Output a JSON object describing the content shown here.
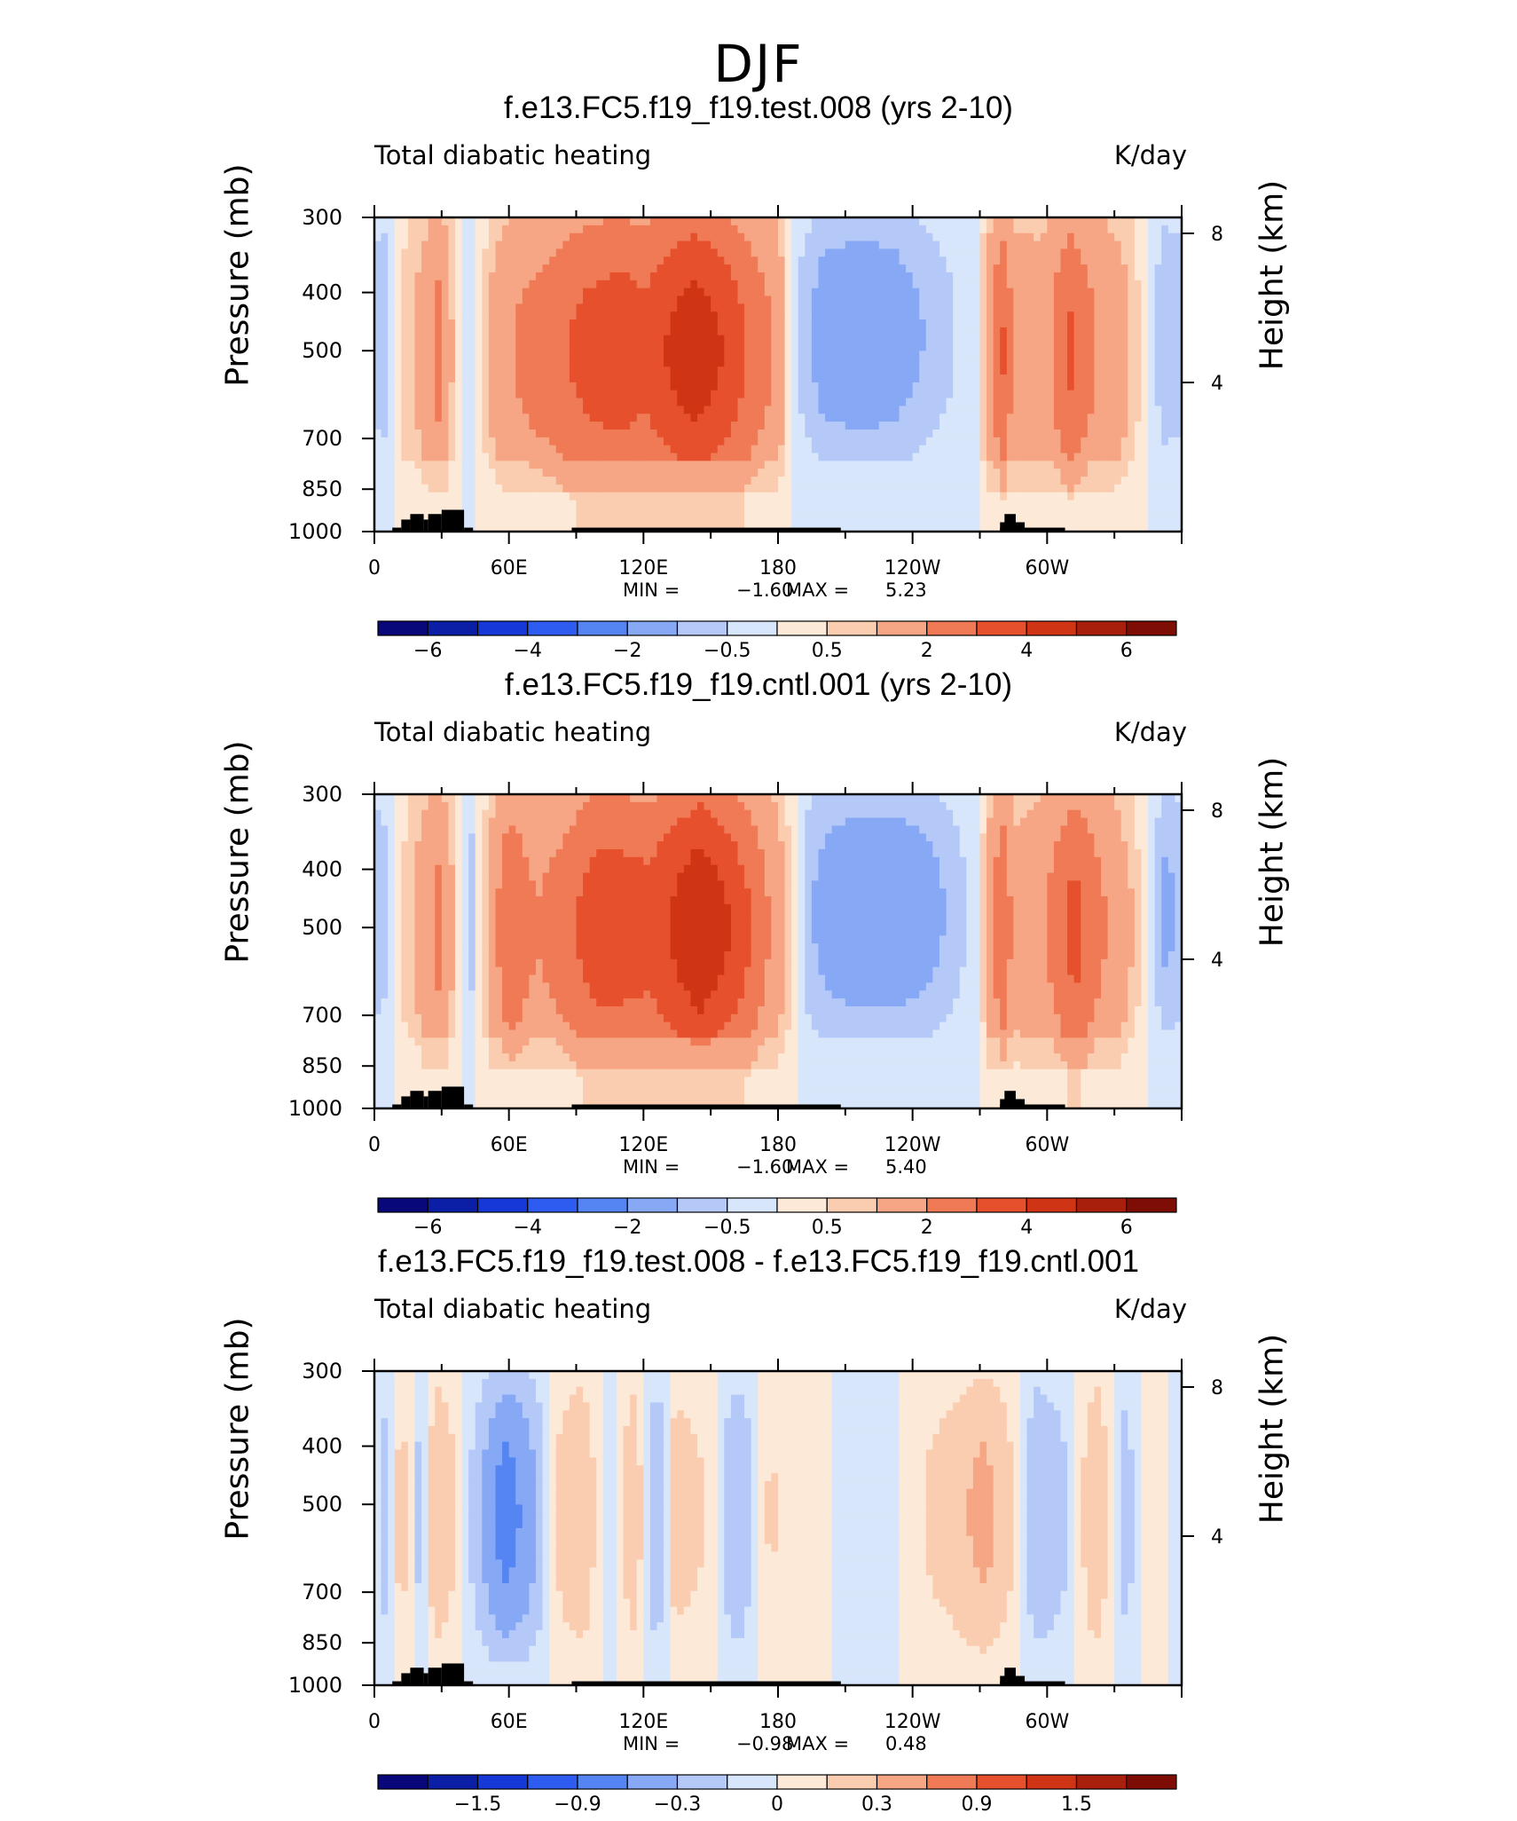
{
  "figure": {
    "season": "DJF"
  },
  "colors": {
    "scale": [
      "#08087a",
      "#0b1fa6",
      "#1538d6",
      "#2e5cf0",
      "#5585f2",
      "#86a8f5",
      "#b4c9f8",
      "#d8e6fb",
      "#fde9d8",
      "#fbcdb0",
      "#f6a684",
      "#f07a55",
      "#e7502c",
      "#cf3414",
      "#a8200c",
      "#7e0d05"
    ],
    "terrain": "#000000"
  },
  "chart_data": [
    {
      "type": "heatmap",
      "title": "f.e13.FC5.f19_f19.test.008 (yrs 2-10)",
      "variable": "Total diabatic heating",
      "units": "K/day",
      "ylabel": "Pressure (mb)",
      "ylabel_right": "Height (km)",
      "x_ticks": [
        "0",
        "60E",
        "120E",
        "180",
        "120W",
        "60W"
      ],
      "x_range": [
        0,
        360
      ],
      "y_ticks": [
        "300",
        "400",
        "500",
        "700",
        "850",
        "1000"
      ],
      "y_range": [
        1000,
        300
      ],
      "y_right_ticks": [
        "8",
        "4"
      ],
      "min_label": "MIN =",
      "min": "−1.60",
      "max_label": "MAX =",
      "max": "5.23",
      "colorbar_labels": [
        "−6",
        "−4",
        "−2",
        "−0.5",
        "0.5",
        "2",
        "4",
        "6"
      ],
      "colorbar_levels": [
        -7,
        -6,
        -5,
        -4,
        -3,
        -2,
        -1,
        -0.5,
        0,
        0.5,
        1,
        2,
        3,
        4,
        5,
        6,
        7
      ],
      "field": [
        {
          "x": 10,
          "features": [
            [
              2,
              0.1,
              0.05,
              0.3
            ]
          ]
        },
        {
          "x": 35,
          "features": [
            [
              0,
              4.0,
              0.1,
              0.6
            ],
            [
              3,
              1.5,
              0.55,
              0.35
            ],
            [
              6,
              3.0,
              0.75,
              0.5
            ]
          ]
        }
      ]
    },
    {
      "type": "heatmap",
      "title": "f.e13.FC5.f19_f19.cntl.001 (yrs 2-10)",
      "variable": "Total diabatic heating",
      "units": "K/day",
      "ylabel": "Pressure (mb)",
      "ylabel_right": "Height (km)",
      "x_ticks": [
        "0",
        "60E",
        "120E",
        "180",
        "120W",
        "60W"
      ],
      "x_range": [
        0,
        360
      ],
      "y_ticks": [
        "300",
        "400",
        "500",
        "700",
        "850",
        "1000"
      ],
      "y_range": [
        1000,
        300
      ],
      "y_right_ticks": [
        "8",
        "4"
      ],
      "min_label": "MIN =",
      "min": "−1.60",
      "max_label": "MAX =",
      "max": "5.40",
      "colorbar_labels": [
        "−6",
        "−4",
        "−2",
        "−0.5",
        "0.5",
        "2",
        "4",
        "6"
      ],
      "colorbar_levels": [
        -7,
        -6,
        -5,
        -4,
        -3,
        -2,
        -1,
        -0.5,
        0,
        0.5,
        1,
        2,
        3,
        4,
        5,
        6,
        7
      ]
    },
    {
      "type": "heatmap",
      "title": "f.e13.FC5.f19_f19.test.008 - f.e13.FC5.f19_f19.cntl.001",
      "variable": "Total diabatic heating",
      "units": "K/day",
      "ylabel": "Pressure (mb)",
      "ylabel_right": "Height (km)",
      "x_ticks": [
        "0",
        "60E",
        "120E",
        "180",
        "120W",
        "60W"
      ],
      "x_range": [
        0,
        360
      ],
      "y_ticks": [
        "300",
        "400",
        "500",
        "700",
        "850",
        "1000"
      ],
      "y_range": [
        1000,
        300
      ],
      "y_right_ticks": [
        "8",
        "4"
      ],
      "min_label": "MIN =",
      "min": "−0.98",
      "max_label": "MAX =",
      "max": "0.48",
      "colorbar_labels": [
        "−1.5",
        "−0.9",
        "−0.3",
        "0",
        "0.3",
        "0.9",
        "1.5"
      ],
      "colorbar_levels": [
        -2.1,
        -1.8,
        -1.5,
        -1.2,
        -0.9,
        -0.6,
        -0.3,
        -0.1,
        0,
        0.1,
        0.3,
        0.6,
        0.9,
        1.2,
        1.5,
        1.8,
        2.1
      ]
    }
  ],
  "fields": {
    "full_test": [
      {
        "x": 3,
        "v": -1.2
      },
      {
        "x": 12,
        "v": 0.6
      },
      {
        "x": 22,
        "v": 1.4
      },
      {
        "x": 29,
        "v": 2.4
      },
      {
        "x": 37,
        "v": 0.4
      },
      {
        "x": 43,
        "v": -0.6
      },
      {
        "x": 52,
        "v": 1.2
      },
      {
        "x": 65,
        "v": 2.2
      },
      {
        "x": 80,
        "v": 2.7
      },
      {
        "x": 95,
        "v": 3.4
      },
      {
        "x": 110,
        "v": 3.7
      },
      {
        "x": 120,
        "v": 3.3
      },
      {
        "x": 130,
        "v": 4.0
      },
      {
        "x": 143,
        "v": 4.7
      },
      {
        "x": 155,
        "v": 4.0
      },
      {
        "x": 168,
        "v": 2.8
      },
      {
        "x": 180,
        "v": 1.8
      },
      {
        "x": 187,
        "v": -0.4
      },
      {
        "x": 200,
        "v": -1.4
      },
      {
        "x": 215,
        "v": -1.6
      },
      {
        "x": 230,
        "v": -1.5
      },
      {
        "x": 245,
        "v": -1.0
      },
      {
        "x": 268,
        "v": -0.2
      },
      {
        "x": 280,
        "v": 3.2
      },
      {
        "x": 286,
        "v": 1.6
      },
      {
        "x": 298,
        "v": 1.5
      },
      {
        "x": 310,
        "v": 3.2
      },
      {
        "x": 322,
        "v": 2.0
      },
      {
        "x": 336,
        "v": 1.2
      },
      {
        "x": 352,
        "v": -1.0
      },
      {
        "x": 360,
        "v": -0.8
      }
    ],
    "full_cntl": [
      {
        "x": 3,
        "v": -1.0
      },
      {
        "x": 12,
        "v": 0.5
      },
      {
        "x": 22,
        "v": 1.5
      },
      {
        "x": 29,
        "v": 2.3
      },
      {
        "x": 37,
        "v": 0.6
      },
      {
        "x": 43,
        "v": -0.8
      },
      {
        "x": 52,
        "v": 1.4
      },
      {
        "x": 60,
        "v": 3.0
      },
      {
        "x": 72,
        "v": 2.0
      },
      {
        "x": 85,
        "v": 2.6
      },
      {
        "x": 98,
        "v": 3.6
      },
      {
        "x": 110,
        "v": 3.6
      },
      {
        "x": 122,
        "v": 3.4
      },
      {
        "x": 132,
        "v": 4.0
      },
      {
        "x": 145,
        "v": 5.0
      },
      {
        "x": 157,
        "v": 4.1
      },
      {
        "x": 170,
        "v": 2.8
      },
      {
        "x": 182,
        "v": 1.2
      },
      {
        "x": 192,
        "v": -0.8
      },
      {
        "x": 205,
        "v": -1.5
      },
      {
        "x": 220,
        "v": -1.6
      },
      {
        "x": 235,
        "v": -1.6
      },
      {
        "x": 250,
        "v": -1.2
      },
      {
        "x": 268,
        "v": -0.3
      },
      {
        "x": 280,
        "v": 3.0
      },
      {
        "x": 286,
        "v": 1.4
      },
      {
        "x": 298,
        "v": 1.8
      },
      {
        "x": 312,
        "v": 3.4
      },
      {
        "x": 324,
        "v": 2.2
      },
      {
        "x": 338,
        "v": 1.0
      },
      {
        "x": 352,
        "v": -1.2
      },
      {
        "x": 360,
        "v": -0.9
      }
    ],
    "diff": [
      {
        "x": 4,
        "v": -0.2
      },
      {
        "x": 12,
        "v": 0.2
      },
      {
        "x": 20,
        "v": -0.15
      },
      {
        "x": 28,
        "v": 0.3
      },
      {
        "x": 36,
        "v": 0.1
      },
      {
        "x": 46,
        "v": -0.2
      },
      {
        "x": 58,
        "v": -0.8
      },
      {
        "x": 68,
        "v": -0.5
      },
      {
        "x": 80,
        "v": 0.1
      },
      {
        "x": 92,
        "v": 0.3
      },
      {
        "x": 104,
        "v": -0.1
      },
      {
        "x": 116,
        "v": 0.25
      },
      {
        "x": 126,
        "v": -0.3
      },
      {
        "x": 134,
        "v": 0.2
      },
      {
        "x": 148,
        "v": 0.1
      },
      {
        "x": 162,
        "v": -0.3
      },
      {
        "x": 176,
        "v": 0.12
      },
      {
        "x": 190,
        "v": 0.05
      },
      {
        "x": 205,
        "v": 0.0
      },
      {
        "x": 222,
        "v": -0.1
      },
      {
        "x": 238,
        "v": 0.05
      },
      {
        "x": 258,
        "v": 0.2
      },
      {
        "x": 272,
        "v": 0.4
      },
      {
        "x": 285,
        "v": 0.1
      },
      {
        "x": 296,
        "v": -0.3
      },
      {
        "x": 310,
        "v": -0.1
      },
      {
        "x": 322,
        "v": 0.3
      },
      {
        "x": 334,
        "v": -0.2
      },
      {
        "x": 348,
        "v": 0.1
      },
      {
        "x": 360,
        "v": -0.1
      }
    ]
  },
  "terrain": [
    {
      "lon0": 8,
      "lon1": 12,
      "p": 985
    },
    {
      "lon0": 12,
      "lon1": 16,
      "p": 955
    },
    {
      "lon0": 16,
      "lon1": 22,
      "p": 935
    },
    {
      "lon0": 22,
      "lon1": 24,
      "p": 955
    },
    {
      "lon0": 24,
      "lon1": 30,
      "p": 935
    },
    {
      "lon0": 30,
      "lon1": 40,
      "p": 920
    },
    {
      "lon0": 40,
      "lon1": 44,
      "p": 985
    },
    {
      "lon0": 88,
      "lon1": 208,
      "p": 985
    },
    {
      "lon0": 281,
      "lon1": 286,
      "p": 935
    },
    {
      "lon0": 279,
      "lon1": 290,
      "p": 965
    },
    {
      "lon0": 279,
      "lon1": 308,
      "p": 985
    }
  ]
}
